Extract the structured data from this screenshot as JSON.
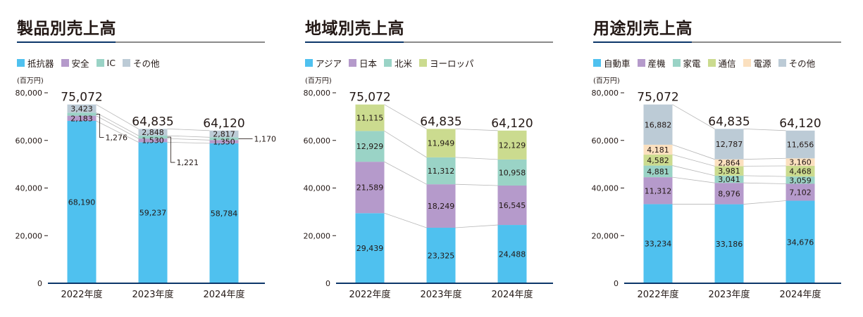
{
  "chart_data": [
    {
      "type": "bar",
      "title": "製品別売上高",
      "unit_label": "(百万円)",
      "categories": [
        "2022年度",
        "2023年度",
        "2024年度"
      ],
      "totals": [
        "75,072",
        "64,835",
        "64,120"
      ],
      "ylim": [
        0,
        80000
      ],
      "yticks": [
        {
          "value": 0,
          "label": "0"
        },
        {
          "value": 20000,
          "label": "20,000"
        },
        {
          "value": 40000,
          "label": "40,000"
        },
        {
          "value": 60000,
          "label": "60,000"
        },
        {
          "value": 80000,
          "label": "80,000"
        }
      ],
      "legend_position": "top-left",
      "grid": false,
      "series": [
        {
          "name": "抵抗器",
          "color": "#4fc1ef",
          "values": [
            68190,
            59237,
            58784
          ],
          "labels": [
            "68,190",
            "59,237",
            "58,784"
          ]
        },
        {
          "name": "安全",
          "color": "#b59acb",
          "values": [
            2183,
            1530,
            1350
          ],
          "labels": [
            "2,183",
            "1,530",
            "1,350"
          ]
        },
        {
          "name": "IC",
          "color": "#9ad3c6",
          "values": [
            1276,
            1221,
            1170
          ],
          "labels": [
            "1,276",
            "1,221",
            "1,170"
          ]
        },
        {
          "name": "その他",
          "color": "#bccbd6",
          "values": [
            3423,
            2848,
            2817
          ],
          "labels": [
            "3,423",
            "2,848",
            "2,817"
          ]
        }
      ]
    },
    {
      "type": "bar",
      "title": "地域別売上高",
      "unit_label": "(百万円)",
      "categories": [
        "2022年度",
        "2023年度",
        "2024年度"
      ],
      "totals": [
        "75,072",
        "64,835",
        "64,120"
      ],
      "ylim": [
        0,
        80000
      ],
      "yticks": [
        {
          "value": 0,
          "label": "0"
        },
        {
          "value": 20000,
          "label": "20,000"
        },
        {
          "value": 40000,
          "label": "40,000"
        },
        {
          "value": 60000,
          "label": "60,000"
        },
        {
          "value": 80000,
          "label": "80,000"
        }
      ],
      "legend_position": "top-left",
      "grid": false,
      "series": [
        {
          "name": "アジア",
          "color": "#4fc1ef",
          "values": [
            29439,
            23325,
            24488
          ],
          "labels": [
            "29,439",
            "23,325",
            "24,488"
          ]
        },
        {
          "name": "日本",
          "color": "#b59acb",
          "values": [
            21589,
            18249,
            16545
          ],
          "labels": [
            "21,589",
            "18,249",
            "16,545"
          ]
        },
        {
          "name": "北米",
          "color": "#9ad3c6",
          "values": [
            12929,
            11312,
            10958
          ],
          "labels": [
            "12,929",
            "11,312",
            "10,958"
          ]
        },
        {
          "name": "ヨーロッパ",
          "color": "#cbdb8f",
          "values": [
            11115,
            11949,
            12129
          ],
          "labels": [
            "11,115",
            "11,949",
            "12,129"
          ]
        }
      ]
    },
    {
      "type": "bar",
      "title": "用途別売上高",
      "unit_label": "(百万円)",
      "categories": [
        "2022年度",
        "2023年度",
        "2024年度"
      ],
      "totals": [
        "75,072",
        "64,835",
        "64,120"
      ],
      "ylim": [
        0,
        80000
      ],
      "yticks": [
        {
          "value": 0,
          "label": "0"
        },
        {
          "value": 20000,
          "label": "20,000"
        },
        {
          "value": 40000,
          "label": "40,000"
        },
        {
          "value": 60000,
          "label": "60,000"
        },
        {
          "value": 80000,
          "label": "80,000"
        }
      ],
      "legend_position": "top-left",
      "grid": false,
      "series": [
        {
          "name": "自動車",
          "color": "#4fc1ef",
          "values": [
            33234,
            33186,
            34676
          ],
          "labels": [
            "33,234",
            "33,186",
            "34,676"
          ]
        },
        {
          "name": "産機",
          "color": "#b59acb",
          "values": [
            11312,
            8976,
            7102
          ],
          "labels": [
            "11,312",
            "8,976",
            "7,102"
          ]
        },
        {
          "name": "家電",
          "color": "#9ad3c6",
          "values": [
            4881,
            3041,
            3059
          ],
          "labels": [
            "4,881",
            "3,041",
            "3,059"
          ]
        },
        {
          "name": "通信",
          "color": "#cbdb8f",
          "values": [
            4582,
            3981,
            4468
          ],
          "labels": [
            "4,582",
            "3,981",
            "4,468"
          ]
        },
        {
          "name": "電源",
          "color": "#fbe0bf",
          "values": [
            4181,
            2864,
            3160
          ],
          "labels": [
            "4,181",
            "2,864",
            "3,160"
          ]
        },
        {
          "name": "その他",
          "color": "#bccbd6",
          "values": [
            16882,
            12787,
            11656
          ],
          "labels": [
            "16,882",
            "12,787",
            "11,656"
          ]
        }
      ]
    }
  ]
}
